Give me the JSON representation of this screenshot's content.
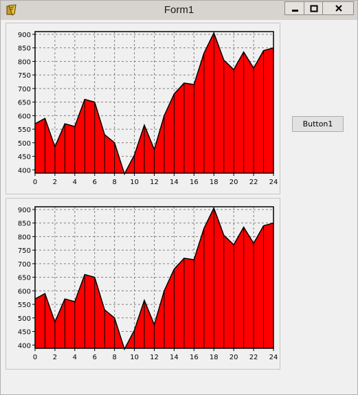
{
  "window": {
    "title": "Form1"
  },
  "controls": {
    "minimize": "minimize-icon",
    "maximize": "maximize-icon",
    "close": "close-icon"
  },
  "button1": {
    "label": "Button1"
  },
  "colors": {
    "fill": "#ff0000",
    "line": "#000000",
    "grid": "#808080"
  },
  "chart_data": [
    {
      "type": "area",
      "x": [
        0,
        1,
        2,
        3,
        4,
        5,
        6,
        7,
        8,
        9,
        10,
        11,
        12,
        13,
        14,
        15,
        16,
        17,
        18,
        19,
        20,
        21,
        22,
        23,
        24
      ],
      "values": [
        570,
        590,
        485,
        570,
        560,
        660,
        650,
        530,
        500,
        385,
        455,
        565,
        475,
        600,
        680,
        720,
        715,
        830,
        905,
        805,
        770,
        835,
        775,
        840,
        850
      ],
      "xlim": [
        0,
        24
      ],
      "ylim": [
        388,
        910
      ],
      "xticks": [
        0,
        2,
        4,
        6,
        8,
        10,
        12,
        14,
        16,
        18,
        20,
        22,
        24
      ],
      "yticks": [
        400,
        450,
        500,
        550,
        600,
        650,
        700,
        750,
        800,
        850,
        900
      ],
      "grid": true,
      "legend": "none"
    },
    {
      "type": "area",
      "x": [
        0,
        1,
        2,
        3,
        4,
        5,
        6,
        7,
        8,
        9,
        10,
        11,
        12,
        13,
        14,
        15,
        16,
        17,
        18,
        19,
        20,
        21,
        22,
        23,
        24
      ],
      "values": [
        570,
        590,
        485,
        570,
        560,
        660,
        650,
        530,
        500,
        385,
        455,
        565,
        475,
        600,
        680,
        720,
        715,
        830,
        905,
        805,
        770,
        835,
        775,
        840,
        850
      ],
      "xlim": [
        0,
        24
      ],
      "ylim": [
        388,
        910
      ],
      "xticks": [
        0,
        2,
        4,
        6,
        8,
        10,
        12,
        14,
        16,
        18,
        20,
        22,
        24
      ],
      "yticks": [
        400,
        450,
        500,
        550,
        600,
        650,
        700,
        750,
        800,
        850,
        900
      ],
      "grid": true,
      "legend": "none"
    }
  ]
}
